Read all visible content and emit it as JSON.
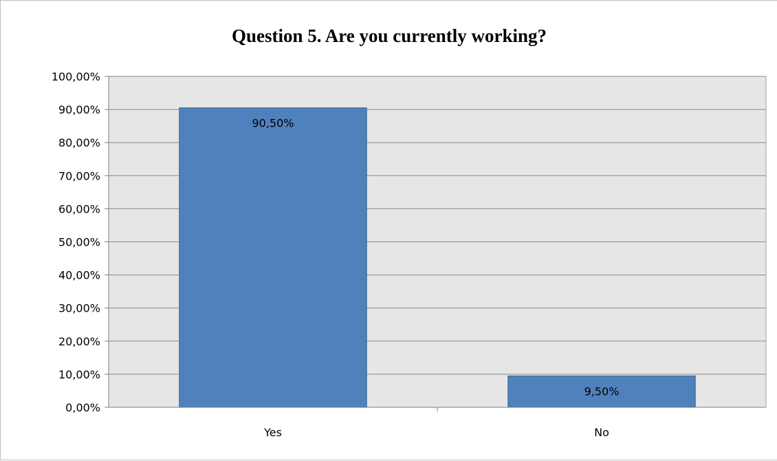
{
  "chart_data": {
    "type": "bar",
    "title": "Question 5. Are you currently working?",
    "categories": [
      "Yes",
      "No"
    ],
    "values": [
      90.5,
      9.5
    ],
    "data_labels": [
      "90,50%",
      "9,50%"
    ],
    "ylim": [
      0,
      100
    ],
    "y_ticks": [
      0,
      10,
      20,
      30,
      40,
      50,
      60,
      70,
      80,
      90,
      100
    ],
    "y_tick_labels": [
      "0,00%",
      "10,00%",
      "20,00%",
      "30,00%",
      "40,00%",
      "50,00%",
      "60,00%",
      "70,00%",
      "80,00%",
      "90,00%",
      "100,00%"
    ],
    "grid": true,
    "legend": "none",
    "colors": {
      "bar": "#4f81bd",
      "bar_border": "#3a6491",
      "plot_background": "#e6e6e6",
      "grid": "#8a8a8a"
    }
  }
}
